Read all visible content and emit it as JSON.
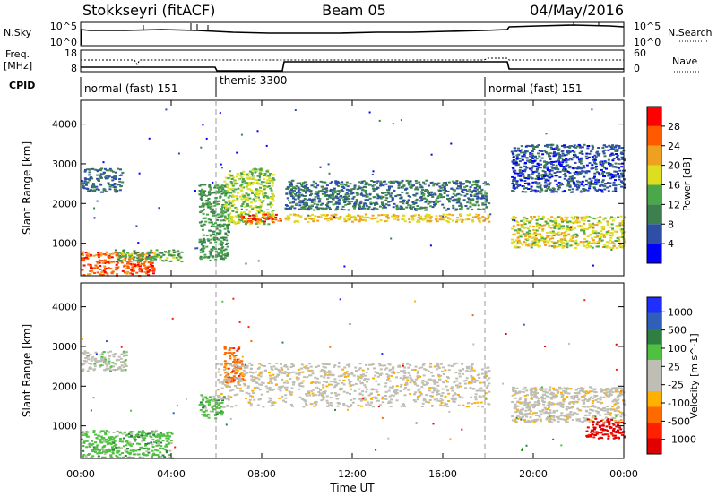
{
  "header": {
    "station": "Stokkseyri (fitACF)",
    "beam": "Beam 05",
    "date": "04/May/2016"
  },
  "summary_panels": {
    "noise_left_label": "N.Sky",
    "noise_right_label": "N.Search",
    "noise_ticks": [
      "10^5",
      "10^0"
    ],
    "freq_left_label": "Freq.",
    "freq_unit": "[MHz]",
    "freq_ticks": [
      "18",
      "8"
    ],
    "nave_label": "Nave",
    "nave_ticks": [
      "60",
      "0"
    ],
    "cpid_label": "CPID"
  },
  "cpid_segments": [
    {
      "label": "normal (fast) 151",
      "start_hour": 0,
      "end_hour": 6
    },
    {
      "label": "themis 3300",
      "start_hour": 6,
      "end_hour": 18
    },
    {
      "label": "normal (fast) 151",
      "start_hour": 18,
      "end_hour": 24
    }
  ],
  "colors": {
    "power_scale": [
      "#0000ff",
      "#2e4fa6",
      "#3d7f4f",
      "#4aa84a",
      "#dede20",
      "#f0a020",
      "#ff5a00",
      "#ff0000"
    ],
    "velocity_scale": [
      "#1f2fff",
      "#2f5fb8",
      "#2f8040",
      "#50c040",
      "#bebeb4",
      "#bebeb4",
      "#ffb000",
      "#ff6a00",
      "#ff2000",
      "#e00000"
    ],
    "ground_scatter": "#bdbdb3"
  },
  "chart_data": [
    {
      "type": "heatmap",
      "panel": "power",
      "ylabel": "Slant Range [km]",
      "x_range_hours": [
        0,
        24
      ],
      "ylim": [
        180,
        4600
      ],
      "y_ticks": [
        1000,
        2000,
        3000,
        4000
      ],
      "colorbar_label": "Power [dB]",
      "colorbar_ticks": [
        4,
        8,
        12,
        16,
        20,
        24,
        28
      ],
      "colorbar_range": [
        0,
        32
      ],
      "echo_regions": [
        {
          "h0": 0.0,
          "h1": 3.2,
          "r0": 200,
          "r1": 800,
          "value": 26
        },
        {
          "h0": 1.5,
          "h1": 4.5,
          "r0": 550,
          "r1": 850,
          "value": 14
        },
        {
          "h0": 0.0,
          "h1": 1.8,
          "r0": 2300,
          "r1": 2900,
          "value": 8
        },
        {
          "h0": 5.2,
          "h1": 6.5,
          "r0": 600,
          "r1": 2500,
          "value": 12
        },
        {
          "h0": 6.3,
          "h1": 8.5,
          "r0": 1500,
          "r1": 2900,
          "value": 16
        },
        {
          "h0": 7.0,
          "h1": 8.8,
          "r0": 1550,
          "r1": 1750,
          "value": 27
        },
        {
          "h0": 9.0,
          "h1": 18.0,
          "r0": 1550,
          "r1": 1750,
          "value": 20
        },
        {
          "h0": 9.0,
          "h1": 18.0,
          "r0": 1850,
          "r1": 2600,
          "value": 9
        },
        {
          "h0": 19.0,
          "h1": 24.0,
          "r0": 900,
          "r1": 1700,
          "value": 18
        },
        {
          "h0": 19.0,
          "h1": 24.0,
          "r0": 2300,
          "r1": 3500,
          "value": 6
        }
      ]
    },
    {
      "type": "heatmap",
      "panel": "velocity",
      "ylabel": "Slant Range [km]",
      "xlabel": "Time UT",
      "x_range_hours": [
        0,
        24
      ],
      "x_tick_labels": [
        "00:00",
        "04:00",
        "08:00",
        "12:00",
        "16:00",
        "20:00",
        "00:00"
      ],
      "ylim": [
        180,
        4600
      ],
      "y_ticks": [
        1000,
        2000,
        3000,
        4000
      ],
      "colorbar_label": "Velocity [m s^-1]",
      "colorbar_ticks": [
        "1000",
        "500",
        "100",
        "25",
        "-25",
        "-100",
        "-500",
        "-1000"
      ],
      "echo_regions": [
        {
          "h0": 0.0,
          "h1": 4.0,
          "r0": 200,
          "r1": 900,
          "value": "100"
        },
        {
          "h0": 0.0,
          "h1": 2.0,
          "r0": 2400,
          "r1": 2900,
          "value": "25"
        },
        {
          "h0": 5.2,
          "h1": 6.3,
          "r0": 1200,
          "r1": 1800,
          "value": "100"
        },
        {
          "h0": 6.3,
          "h1": 7.2,
          "r0": 2100,
          "r1": 3000,
          "value": "-500"
        },
        {
          "h0": 6.0,
          "h1": 18.0,
          "r0": 1500,
          "r1": 2600,
          "value": "-25"
        },
        {
          "h0": 19.0,
          "h1": 24.0,
          "r0": 1100,
          "r1": 2000,
          "value": "-25"
        },
        {
          "h0": 22.3,
          "h1": 24.0,
          "r0": 700,
          "r1": 1200,
          "value": "-1000"
        }
      ]
    }
  ]
}
